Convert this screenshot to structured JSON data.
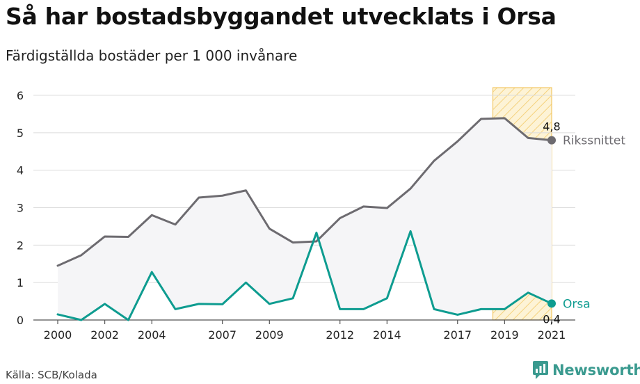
{
  "header": {
    "title": "Så har bostadsbyggandet utvecklats i Orsa",
    "subtitle": "Färdigställda bostäder per 1 000 invånare"
  },
  "footer": {
    "source": "Källa: SCB/Kolada",
    "brand": "Newsworthy"
  },
  "colors": {
    "national": "#6d6b70",
    "local": "#0e9c90",
    "highlight_fill": "#fbe9b4",
    "highlight_stroke": "#f2c765",
    "area_fill": "#f5f5f7",
    "grid": "#dcdcdc",
    "brand": "#3a9a8f"
  },
  "chart_data": {
    "type": "line",
    "x": [
      2000,
      2001,
      2002,
      2003,
      2004,
      2005,
      2006,
      2007,
      2008,
      2009,
      2010,
      2011,
      2012,
      2013,
      2014,
      2015,
      2016,
      2017,
      2018,
      2019,
      2020,
      2021
    ],
    "x_tick_labels": [
      "2000",
      "2002",
      "2004",
      "2007",
      "2009",
      "2012",
      "2014",
      "2017",
      "2019",
      "2021"
    ],
    "y_ticks": [
      "0",
      "1",
      "2",
      "3",
      "4",
      "5",
      "6"
    ],
    "ylim": [
      0,
      6
    ],
    "grid": true,
    "highlight_range": [
      2018.5,
      2021
    ],
    "series": [
      {
        "name": "Rikssnittet",
        "end_label": "4,8",
        "values": [
          1.45,
          1.73,
          2.23,
          2.22,
          2.8,
          2.55,
          3.27,
          3.32,
          3.46,
          2.44,
          2.07,
          2.1,
          2.72,
          3.03,
          2.99,
          3.51,
          4.25,
          4.77,
          5.37,
          5.39,
          4.86,
          4.8
        ]
      },
      {
        "name": "Orsa",
        "end_label": "0,4",
        "values": [
          0.15,
          0.0,
          0.43,
          0.0,
          1.28,
          0.29,
          0.43,
          0.42,
          1.0,
          0.43,
          0.58,
          2.33,
          0.29,
          0.29,
          0.58,
          2.37,
          0.29,
          0.14,
          0.29,
          0.29,
          0.73,
          0.44
        ]
      }
    ]
  }
}
